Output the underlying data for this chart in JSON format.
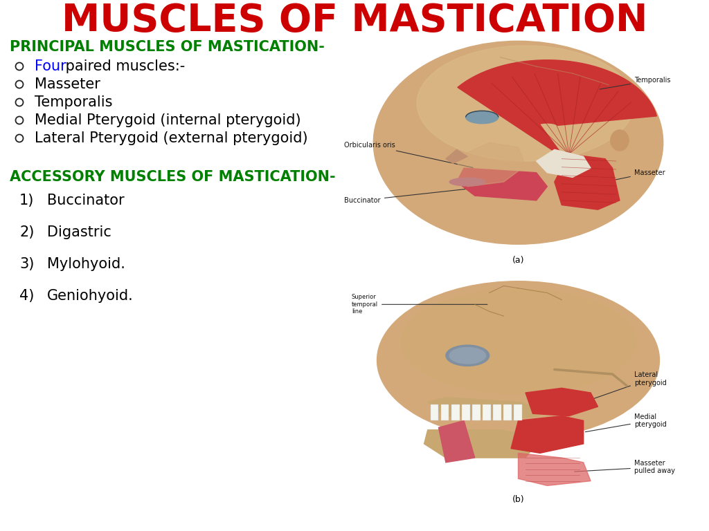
{
  "title": "MUSCLES OF MASTICATION",
  "title_color": "#CC0000",
  "title_fontsize": 40,
  "bg_color": "#FFFFFF",
  "section1_heading": "PRINCIPAL MUSCLES OF MASTICATION-",
  "section1_color": "#008000",
  "section1_fontsize": 15,
  "bullet1_items": [
    {
      "text": "Four paired muscles:-",
      "color": "#000000"
    },
    {
      "text": "Masseter",
      "color": "#000000"
    },
    {
      "text": "Temporalis",
      "color": "#000000"
    },
    {
      "text": "Medial Pterygoid (internal pterygoid)",
      "color": "#000000"
    },
    {
      "text": "Lateral Pterygoid (external pterygoid)",
      "color": "#000000"
    }
  ],
  "four_color": "#0000FF",
  "section2_heading": "ACCESSORY MUSCLES OF MASTICATION-",
  "section2_color": "#008000",
  "section2_fontsize": 15,
  "bullet2_items": [
    {
      "num": "1)",
      "text": "Buccinator"
    },
    {
      "num": "2)",
      "text": "Digastric"
    },
    {
      "num": "3)",
      "text": "Mylohyoid."
    },
    {
      "num": "4)",
      "text": "Geniohyoid."
    }
  ],
  "text_fontsize": 15,
  "image_border_color": "#111111",
  "skin_color": "#D4A97A",
  "skin_light": "#E8C99A",
  "muscle_red": "#CC3333",
  "muscle_dark": "#AA2222",
  "tendon_white": "#E8E0D0",
  "bone_color": "#C8A86A"
}
